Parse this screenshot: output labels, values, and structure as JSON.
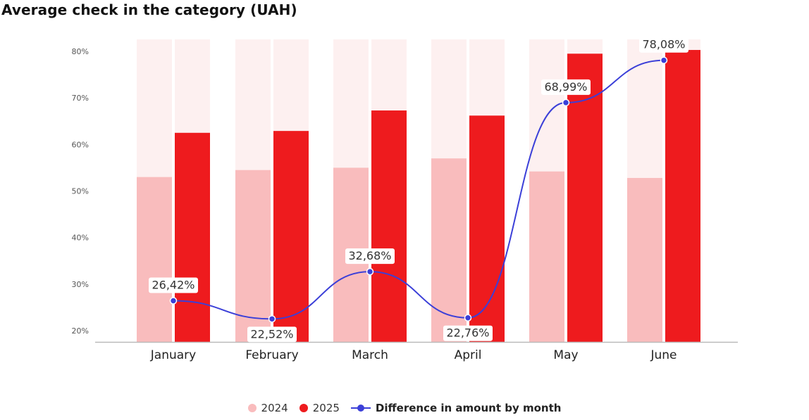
{
  "title": "Average check in the category (UAH)",
  "colors": {
    "bar_2024": "#f9bcbd",
    "bar_2025": "#ee1b1e",
    "bar_background": "#fdf0f0",
    "line": "#3b3fd8",
    "axis": "#bbbbbb",
    "tick_text": "#555555"
  },
  "legend": {
    "item_2024": "2024",
    "item_2025": "2025",
    "item_line": "Difference in amount by month"
  },
  "chart_data": {
    "type": "bar",
    "title": "Average check in the category (UAH)",
    "categories": [
      "January",
      "February",
      "March",
      "April",
      "May",
      "June"
    ],
    "y_ticks": [
      "20%",
      "30%",
      "40%",
      "50%",
      "60%",
      "70%",
      "80%"
    ],
    "ylim": [
      18,
      80
    ],
    "grid": false,
    "legend_position": "bottom",
    "series": [
      {
        "name": "2024",
        "type": "bar",
        "values": [
          53,
          54.5,
          55,
          57,
          54.2,
          52.8
        ]
      },
      {
        "name": "2025",
        "type": "bar",
        "values": [
          62.5,
          62.9,
          67.3,
          66.2,
          79.5,
          80.3
        ]
      },
      {
        "name": "Difference in amount by month",
        "type": "line",
        "values": [
          26.42,
          22.52,
          32.68,
          22.76,
          68.99,
          78.08
        ],
        "labels": [
          "26,42%",
          "22,52%",
          "32,68%",
          "22,76%",
          "68,99%",
          "78,08%"
        ]
      }
    ]
  }
}
